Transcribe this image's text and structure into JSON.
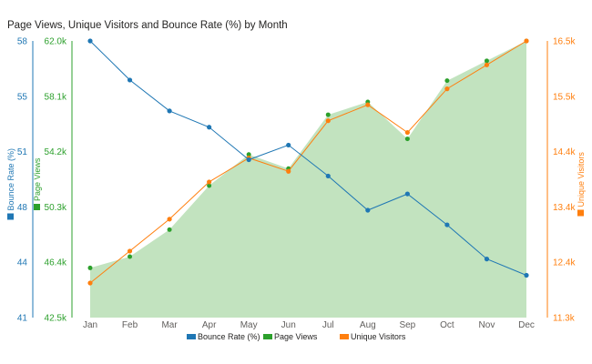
{
  "chart_data": {
    "type": "line",
    "title": "Page Views, Unique Visitors and Bounce Rate (%) by Month",
    "categories": [
      "Jan",
      "Feb",
      "Mar",
      "Apr",
      "May",
      "Jun",
      "Jul",
      "Aug",
      "Sep",
      "Oct",
      "Nov",
      "Dec"
    ],
    "series": [
      {
        "name": "Page Views",
        "render": "area",
        "axis": "page_views",
        "color": "#2ca02c",
        "fill": "#c2e3bf",
        "values": [
          46.0,
          46.8,
          48.7,
          51.8,
          54.0,
          53.0,
          56.8,
          57.7,
          55.1,
          59.2,
          60.6,
          62.0
        ]
      },
      {
        "name": "Unique Visitors",
        "render": "line",
        "axis": "unique_visitors",
        "color": "#ff7f0e",
        "values": [
          11.95,
          12.55,
          13.15,
          13.85,
          14.3,
          14.05,
          15.0,
          15.3,
          14.78,
          15.6,
          16.05,
          16.5
        ]
      },
      {
        "name": "Bounce Rate (%)",
        "render": "line",
        "axis": "bounce_rate",
        "color": "#1f77b4",
        "values": [
          58.0,
          55.6,
          53.7,
          52.7,
          50.7,
          51.6,
          49.7,
          47.6,
          48.6,
          46.7,
          44.6,
          43.6
        ]
      }
    ],
    "axes": {
      "bounce_rate": {
        "label": "Bounce Rate (%)",
        "color": "#1f77b4",
        "ticks": [
          "58",
          "55",
          "51",
          "48",
          "44",
          "41"
        ],
        "range": [
          41,
          58
        ]
      },
      "page_views": {
        "label": "Page Views",
        "color": "#2ca02c",
        "ticks": [
          "62.0k",
          "58.1k",
          "54.2k",
          "50.3k",
          "46.4k",
          "42.5k"
        ],
        "range": [
          42.5,
          62.0
        ]
      },
      "unique_visitors": {
        "label": "Unique Visitors",
        "color": "#ff7f0e",
        "ticks": [
          "16.5k",
          "15.5k",
          "14.4k",
          "13.4k",
          "12.4k",
          "11.3k"
        ],
        "range": [
          11.3,
          16.5
        ]
      }
    },
    "legend": {
      "position": "bottom",
      "items": [
        "Bounce Rate (%)",
        "Page Views",
        "Unique Visitors"
      ]
    },
    "grid": false
  }
}
